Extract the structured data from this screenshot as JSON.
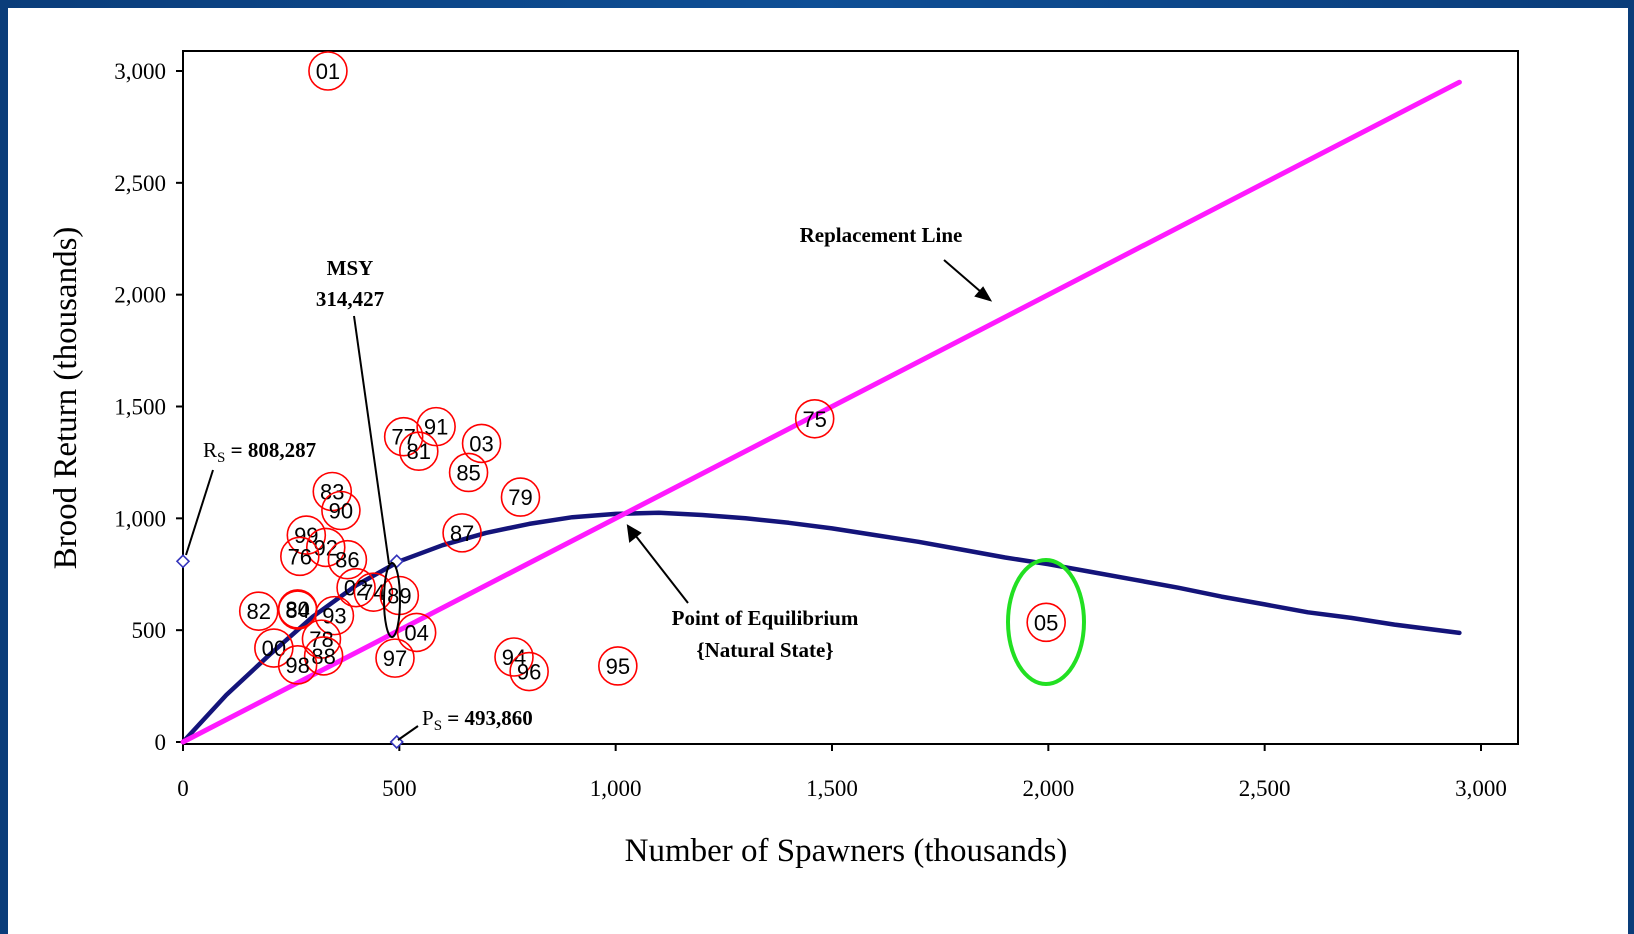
{
  "chart_data": {
    "type": "scatter",
    "title": "",
    "xlabel": "Number of Spawners (thousands)",
    "ylabel": "Brood Return (thousands)",
    "xlim": [
      0,
      3000
    ],
    "ylim": [
      0,
      3000
    ],
    "xticks": [
      "0",
      "500",
      "1,000",
      "1,500",
      "2,000",
      "2,500",
      "3,000"
    ],
    "yticks": [
      "0",
      "500",
      "1,000",
      "1,500",
      "2,000",
      "2,500",
      "3,000"
    ],
    "xtick_values": [
      0,
      500,
      1000,
      1500,
      2000,
      2500,
      3000
    ],
    "ytick_values": [
      0,
      500,
      1000,
      1500,
      2000,
      2500,
      3000
    ],
    "grid": false,
    "points": [
      {
        "label": "01",
        "x": 335,
        "y": 3000
      },
      {
        "label": "75",
        "x": 1460,
        "y": 1445
      },
      {
        "label": "77",
        "x": 510,
        "y": 1365
      },
      {
        "label": "91",
        "x": 585,
        "y": 1410
      },
      {
        "label": "81",
        "x": 545,
        "y": 1300
      },
      {
        "label": "03",
        "x": 690,
        "y": 1335
      },
      {
        "label": "85",
        "x": 660,
        "y": 1205
      },
      {
        "label": "79",
        "x": 780,
        "y": 1095
      },
      {
        "label": "83",
        "x": 345,
        "y": 1120
      },
      {
        "label": "90",
        "x": 365,
        "y": 1035
      },
      {
        "label": "87",
        "x": 645,
        "y": 935
      },
      {
        "label": "99",
        "x": 285,
        "y": 925
      },
      {
        "label": "92",
        "x": 330,
        "y": 870
      },
      {
        "label": "76",
        "x": 270,
        "y": 830
      },
      {
        "label": "86",
        "x": 380,
        "y": 815
      },
      {
        "label": "02",
        "x": 400,
        "y": 690
      },
      {
        "label": "74",
        "x": 440,
        "y": 670
      },
      {
        "label": "89",
        "x": 500,
        "y": 655
      },
      {
        "label": "82",
        "x": 175,
        "y": 585
      },
      {
        "label": "80",
        "x": 265,
        "y": 595
      },
      {
        "label": "84",
        "x": 265,
        "y": 590
      },
      {
        "label": "93",
        "x": 350,
        "y": 565
      },
      {
        "label": "04",
        "x": 540,
        "y": 490
      },
      {
        "label": "78",
        "x": 320,
        "y": 460
      },
      {
        "label": "00",
        "x": 210,
        "y": 420
      },
      {
        "label": "88",
        "x": 325,
        "y": 385
      },
      {
        "label": "98",
        "x": 265,
        "y": 345
      },
      {
        "label": "97",
        "x": 490,
        "y": 375
      },
      {
        "label": "94",
        "x": 765,
        "y": 380
      },
      {
        "label": "96",
        "x": 800,
        "y": 315
      },
      {
        "label": "95",
        "x": 1005,
        "y": 340
      },
      {
        "label": "05",
        "x": 1995,
        "y": 535
      }
    ],
    "curves": [
      {
        "kind": "stock-recruit",
        "color": "#14147a",
        "x": [
          0,
          100,
          200,
          300,
          400,
          500,
          600,
          700,
          800,
          900,
          1000,
          1100,
          1200,
          1300,
          1400,
          1500,
          1600,
          1700,
          1800,
          1900,
          2000,
          2100,
          2200,
          2300,
          2400,
          2500,
          2600,
          2700,
          2800,
          2950
        ],
        "y": [
          0,
          210,
          390,
          560,
          700,
          808,
          880,
          935,
          975,
          1005,
          1020,
          1025,
          1015,
          1000,
          980,
          955,
          925,
          895,
          860,
          825,
          795,
          760,
          725,
          690,
          650,
          615,
          580,
          555,
          525,
          488
        ]
      },
      {
        "kind": "replacement",
        "color": "#ff1aff",
        "x": [
          0,
          2950
        ],
        "y": [
          0,
          2950
        ]
      }
    ],
    "reference_points": [
      {
        "x": 0,
        "y": 808
      },
      {
        "x": 494,
        "y": 0
      },
      {
        "x": 494,
        "y": 808
      }
    ],
    "annotations": {
      "replacement": {
        "text": "Replacement Line"
      },
      "msy": {
        "line1": "MSY",
        "line2": "314,427"
      },
      "rs": {
        "sym": "R",
        "sub": "S",
        "rest": " = 808,287"
      },
      "ps": {
        "sym": "P",
        "sub": "S",
        "rest": " = 493,860"
      },
      "equilibrium": {
        "line1": "Point of Equilibrium",
        "line2": "{Natural State}"
      }
    },
    "colors": {
      "point_circle": "#ff0000",
      "highlight_ellipse": "#22e022",
      "msy_ellipse": "#000000",
      "reference_marker": "#3333bb"
    }
  }
}
